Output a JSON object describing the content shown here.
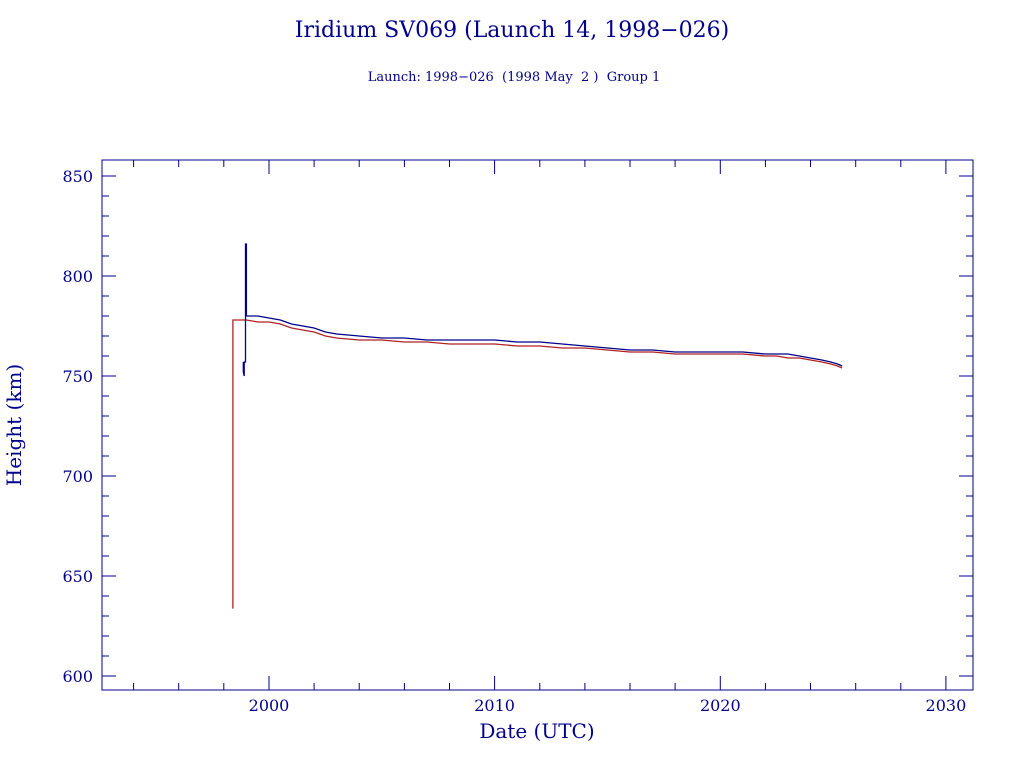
{
  "chart_data": {
    "type": "line",
    "title": "Iridium SV069 (Launch 14, 1998−026)",
    "subtitle": "Launch: 1998−026  (1998 May  2 )  Group 1",
    "xlabel": "Date (UTC)",
    "ylabel": "Height (km)",
    "xlim": [
      1992.6,
      2031.2
    ],
    "ylim": [
      593,
      858
    ],
    "x_ticks": [
      2000,
      2010,
      2020,
      2030
    ],
    "x_tick_labels": [
      "2000",
      "2010",
      "2020",
      "2030"
    ],
    "x_minor_step": 2,
    "y_ticks": [
      600,
      650,
      700,
      750,
      800,
      850
    ],
    "y_tick_labels": [
      "600",
      "650",
      "700",
      "750",
      "800",
      "850"
    ],
    "y_minor_step": 10,
    "grid": false,
    "legend": "none",
    "series": [
      {
        "color": "#00008b",
        "x": [
          1998.86,
          1998.86,
          1998.9,
          1998.9,
          1998.96,
          1998.96,
          1999.0,
          1999.0,
          1999.5,
          2000.0,
          2000.5,
          2001.0,
          2001.5,
          2002.0,
          2002.5,
          2003.0,
          2004.0,
          2005.0,
          2006.0,
          2007.0,
          2008.0,
          2009.0,
          2010.0,
          2011.0,
          2012.0,
          2013.0,
          2014.0,
          2015.0,
          2016.0,
          2017.0,
          2018.0,
          2019.0,
          2020.0,
          2021.0,
          2022.0,
          2022.5,
          2023.0,
          2023.5,
          2024.0,
          2024.5,
          2024.9,
          2025.2,
          2025.4
        ],
        "y": [
          757,
          752,
          750,
          757,
          757,
          816,
          816,
          780,
          780,
          779,
          778,
          776,
          775,
          774,
          772,
          771,
          770,
          769,
          769,
          768,
          768,
          768,
          768,
          767,
          767,
          766,
          765,
          764,
          763,
          763,
          762,
          762,
          762,
          762,
          761,
          761,
          761,
          760,
          759,
          758,
          757,
          756,
          755
        ]
      },
      {
        "color": "#b22222",
        "x": [
          1998.37,
          1998.37,
          1998.4,
          1998.4,
          1999.0,
          1999.5,
          2000.0,
          2000.5,
          2001.0,
          2001.5,
          2002.0,
          2002.5,
          2003.0,
          2004.0,
          2005.0,
          2006.0,
          2007.0,
          2008.0,
          2009.0,
          2010.0,
          2011.0,
          2012.0,
          2013.0,
          2014.0,
          2015.0,
          2016.0,
          2017.0,
          2018.0,
          2019.0,
          2020.0,
          2021.0,
          2022.0,
          2022.5,
          2023.0,
          2023.5,
          2024.0,
          2024.5,
          2024.9,
          2025.2,
          2025.4
        ],
        "y": [
          634,
          634,
          634,
          778,
          778,
          777,
          777,
          776,
          774,
          773,
          772,
          770,
          769,
          768,
          768,
          767,
          767,
          766,
          766,
          766,
          765,
          765,
          764,
          764,
          763,
          762,
          762,
          761,
          761,
          761,
          761,
          760,
          760,
          759,
          759,
          758,
          757,
          756,
          755,
          754
        ]
      }
    ]
  }
}
